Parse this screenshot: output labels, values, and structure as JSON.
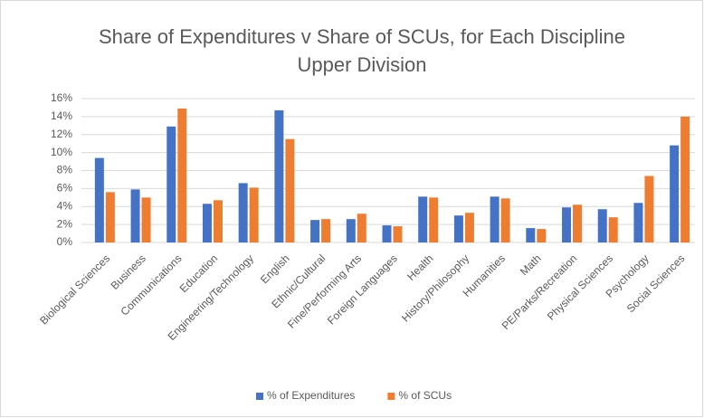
{
  "chart_data": {
    "type": "bar",
    "title": "Share of Expenditures v Share of SCUs, for Each Discipline",
    "subtitle": "Upper Division",
    "categories": [
      "Biological Sciences",
      "Business",
      "Communications",
      "Education",
      "Engineering/Technology",
      "English",
      "Ethnic/Cultural",
      "Fine/Performing Arts",
      "Foreign Languages",
      "Health",
      "History/Philosophy",
      "Humanities",
      "Math",
      "PE/Parks/Recreation",
      "Physical Sciences",
      "Psychology",
      "Social Sciences"
    ],
    "series": [
      {
        "name": "% of Expenditures",
        "color": "#4472c4",
        "values": [
          9.4,
          5.9,
          12.9,
          4.3,
          6.6,
          14.7,
          2.5,
          2.6,
          1.9,
          5.1,
          3.0,
          5.1,
          1.6,
          3.9,
          3.7,
          4.4,
          10.8
        ]
      },
      {
        "name": "% of SCUs",
        "color": "#ed7d31",
        "values": [
          5.6,
          5.0,
          14.9,
          4.7,
          6.1,
          11.5,
          2.6,
          3.2,
          1.8,
          5.0,
          3.3,
          4.9,
          1.5,
          4.2,
          2.8,
          7.4,
          14.0
        ]
      }
    ],
    "ylim": [
      0,
      16
    ],
    "yticks": [
      {
        "value": 0,
        "label": "0%"
      },
      {
        "value": 2,
        "label": "2%"
      },
      {
        "value": 4,
        "label": "4%"
      },
      {
        "value": 6,
        "label": "6%"
      },
      {
        "value": 8,
        "label": "8%"
      },
      {
        "value": 10,
        "label": "10%"
      },
      {
        "value": 12,
        "label": "12%"
      },
      {
        "value": 14,
        "label": "14%"
      },
      {
        "value": 16,
        "label": "16%"
      }
    ],
    "grid": true,
    "legend": "bottom"
  }
}
